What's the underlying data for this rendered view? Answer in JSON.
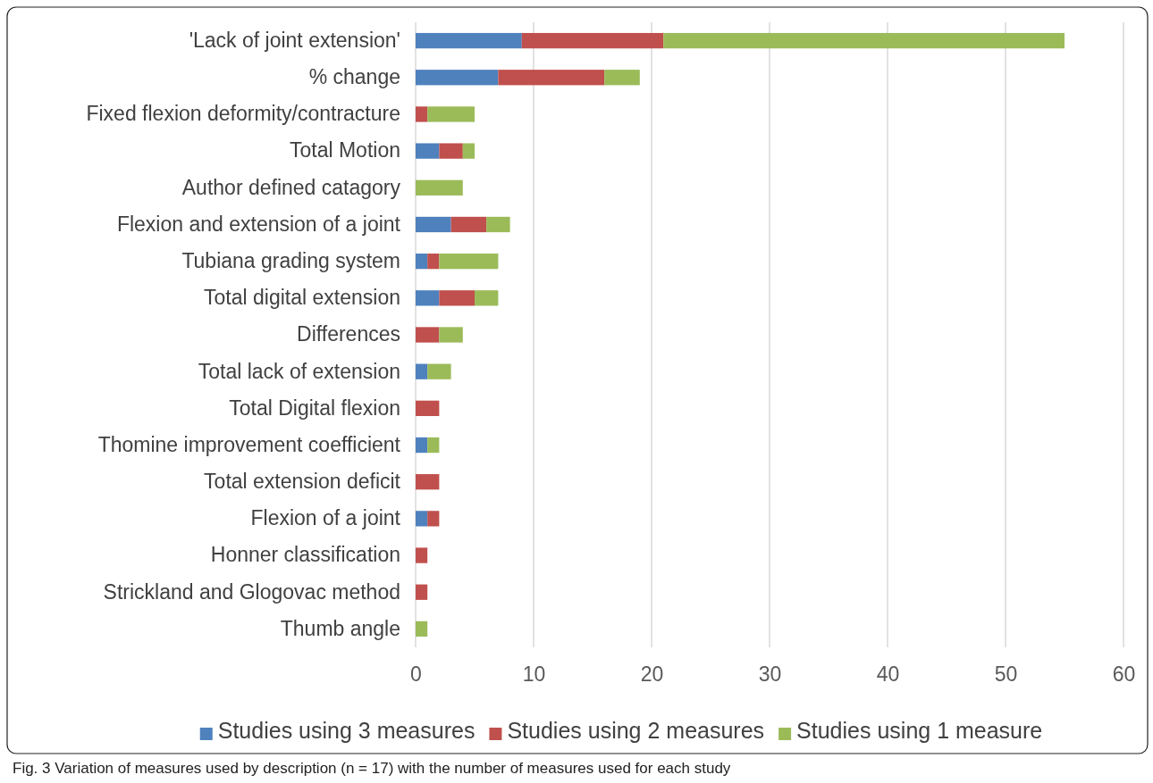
{
  "chart_data": {
    "type": "bar",
    "orientation": "horizontal",
    "stacked": true,
    "categories": [
      "'Lack of joint extension'",
      "% change",
      "Fixed flexion deformity/contracture",
      "Total Motion",
      "Author defined catagory",
      "Flexion and extension of a joint",
      "Tubiana grading system",
      "Total digital extension",
      "Differences",
      "Total lack of extension",
      "Total Digital flexion",
      "Thomine improvement coefficient",
      "Total extension deficit",
      "Flexion of a joint",
      "Honner classification",
      "Strickland and Glogovac method",
      "Thumb angle"
    ],
    "series": [
      {
        "name": "Studies using 3 measures",
        "color": "#4f81bd",
        "values": [
          9,
          7,
          0,
          2,
          0,
          3,
          1,
          2,
          0,
          1,
          0,
          1,
          0,
          1,
          0,
          0,
          0
        ]
      },
      {
        "name": "Studies using 2 measures",
        "color": "#c0504d",
        "values": [
          12,
          9,
          1,
          2,
          0,
          3,
          1,
          3,
          2,
          0,
          2,
          0,
          2,
          1,
          1,
          1,
          0
        ]
      },
      {
        "name": "Studies using 1 measure",
        "color": "#9bbb59",
        "values": [
          34,
          3,
          4,
          1,
          4,
          2,
          5,
          2,
          2,
          2,
          0,
          1,
          0,
          0,
          0,
          0,
          1
        ]
      }
    ],
    "xlim": [
      0,
      60
    ],
    "xticks": [
      0,
      10,
      20,
      30,
      40,
      50,
      60
    ],
    "grid": "x",
    "legend": "bottom",
    "annotations": [
      "Fig. 3 Variation of measures used by description (n = 17) with the number of measures used for each study"
    ]
  }
}
